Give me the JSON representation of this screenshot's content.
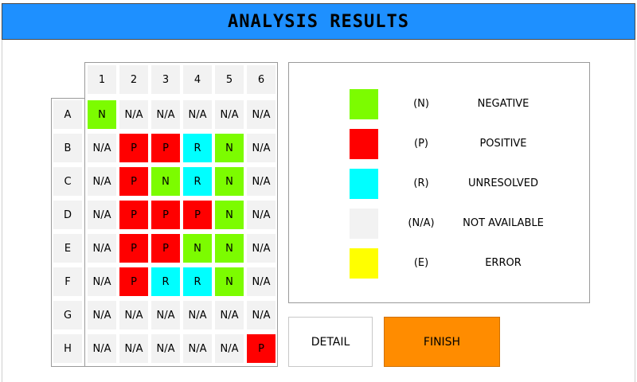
{
  "header": {
    "title": "ANALYSIS RESULTS"
  },
  "colors": {
    "title_bar": "#1e90ff",
    "N": "#7cfc00",
    "P": "#ff0000",
    "R": "#00ffff",
    "NA": "#f2f2f2",
    "E": "#ffff00",
    "finish": "#ff8c00"
  },
  "grid": {
    "columns": [
      "1",
      "2",
      "3",
      "4",
      "5",
      "6"
    ],
    "rows": [
      "A",
      "B",
      "C",
      "D",
      "E",
      "F",
      "G",
      "H"
    ],
    "cells": [
      [
        "N",
        "N/A",
        "N/A",
        "N/A",
        "N/A",
        "N/A"
      ],
      [
        "N/A",
        "P",
        "P",
        "R",
        "N",
        "N/A"
      ],
      [
        "N/A",
        "P",
        "N",
        "R",
        "N",
        "N/A"
      ],
      [
        "N/A",
        "P",
        "P",
        "P",
        "N",
        "N/A"
      ],
      [
        "N/A",
        "P",
        "P",
        "N",
        "N",
        "N/A"
      ],
      [
        "N/A",
        "P",
        "R",
        "R",
        "N",
        "N/A"
      ],
      [
        "N/A",
        "N/A",
        "N/A",
        "N/A",
        "N/A",
        "N/A"
      ],
      [
        "N/A",
        "N/A",
        "N/A",
        "N/A",
        "N/A",
        "P"
      ]
    ]
  },
  "legend": [
    {
      "key": "N",
      "code": "(N)",
      "name": "NEGATIVE"
    },
    {
      "key": "P",
      "code": "(P)",
      "name": "POSITIVE"
    },
    {
      "key": "R",
      "code": "(R)",
      "name": "UNRESOLVED"
    },
    {
      "key": "NA",
      "code": "(N/A)",
      "name": "NOT AVAILABLE"
    },
    {
      "key": "E",
      "code": "(E)",
      "name": "ERROR"
    }
  ],
  "buttons": {
    "detail": "DETAIL",
    "finish": "FINISH"
  }
}
